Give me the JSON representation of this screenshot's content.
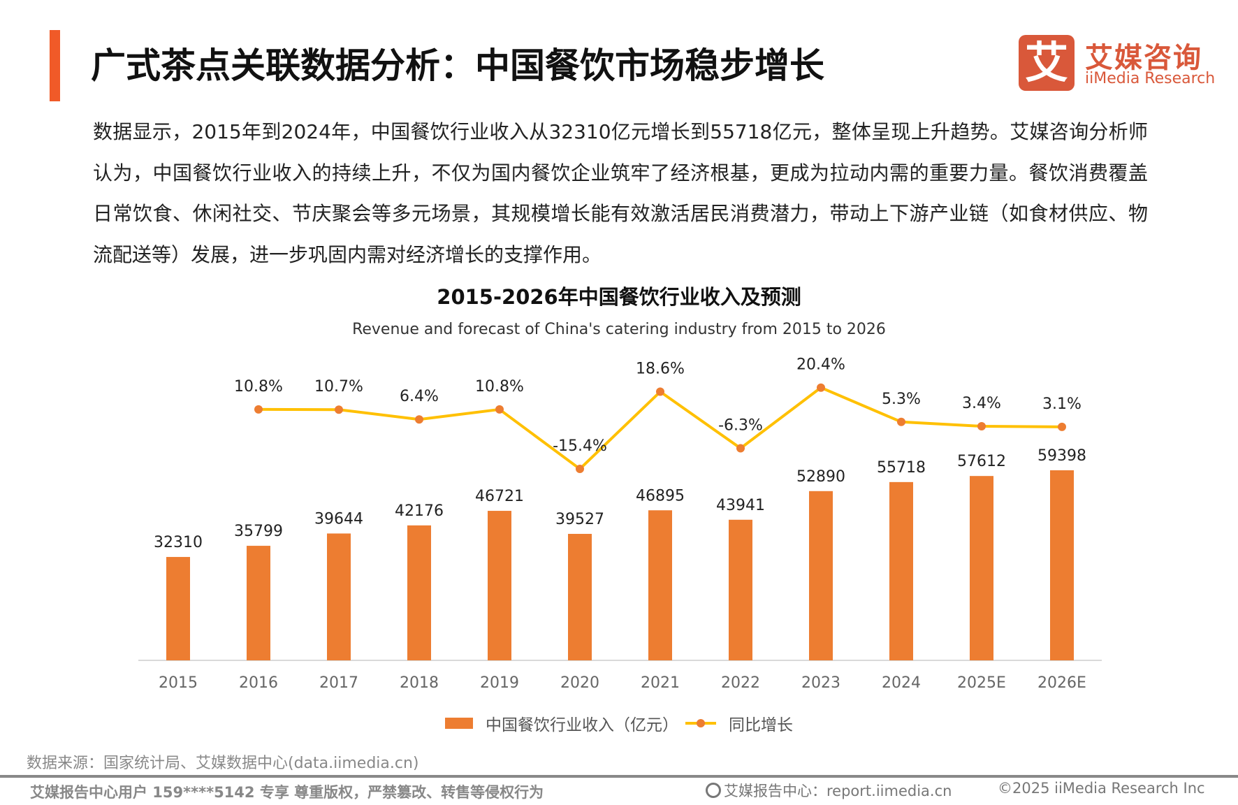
{
  "header": {
    "title": "广式茶点关联数据分析：中国餐饮市场稳步增长",
    "accent_color": "#F05A28"
  },
  "logo": {
    "mark": "艾",
    "cn": "艾媒咨询",
    "en": "iiMedia Research",
    "color": "#D9583A"
  },
  "paragraph": "数据显示，2015年到2024年，中国餐饮行业收入从32310亿元增长到55718亿元，整体呈现上升趋势。艾媒咨询分析师认为，中国餐饮行业收入的持续上升，不仅为国内餐饮企业筑牢了经济根基，更成为拉动内需的重要力量。餐饮消费覆盖日常饮食、休闲社交、节庆聚会等多元场景，其规模增长能有效激活居民消费潜力，带动上下游产业链（如食材供应、物流配送等）发展，进一步巩固内需对经济增长的支撑作用。",
  "chart_data": {
    "type": "bar+line",
    "title": "2015-2026年中国餐饮行业收入及预测",
    "subtitle": "Revenue and forecast of China's catering industry from 2015 to 2026",
    "categories": [
      "2015",
      "2016",
      "2017",
      "2018",
      "2019",
      "2020",
      "2021",
      "2022",
      "2023",
      "2024",
      "2025E",
      "2026E"
    ],
    "series": [
      {
        "name": "中国餐饮行业收入（亿元）",
        "type": "bar",
        "color": "#ED7D31",
        "values": [
          32310,
          35799,
          39644,
          42176,
          46721,
          39527,
          46895,
          43941,
          52890,
          55718,
          57612,
          59398
        ]
      },
      {
        "name": "同比增长",
        "type": "line",
        "color": "#FFC000",
        "marker_color": "#ED7D31",
        "values": [
          null,
          10.8,
          10.7,
          6.4,
          10.8,
          -15.4,
          18.6,
          -6.3,
          20.4,
          5.3,
          3.4,
          3.1
        ],
        "labels": [
          "",
          "10.8%",
          "10.7%",
          "6.4%",
          "10.8%",
          "-15.4%",
          "18.6%",
          "-6.3%",
          "20.4%",
          "5.3%",
          "3.4%",
          "3.1%"
        ]
      }
    ],
    "legend": "bottom",
    "grid": false
  },
  "source": "数据来源：国家统计局、艾媒数据中心(data.iimedia.cn)",
  "footer": {
    "left": "艾媒报告中心用户 159****5142 专享 尊重版权，严禁篡改、转售等侵权行为",
    "mid": "艾媒报告中心：report.iimedia.cn",
    "right": "©2025  iiMedia Research  Inc",
    "mid_icon": "globe-icon"
  }
}
